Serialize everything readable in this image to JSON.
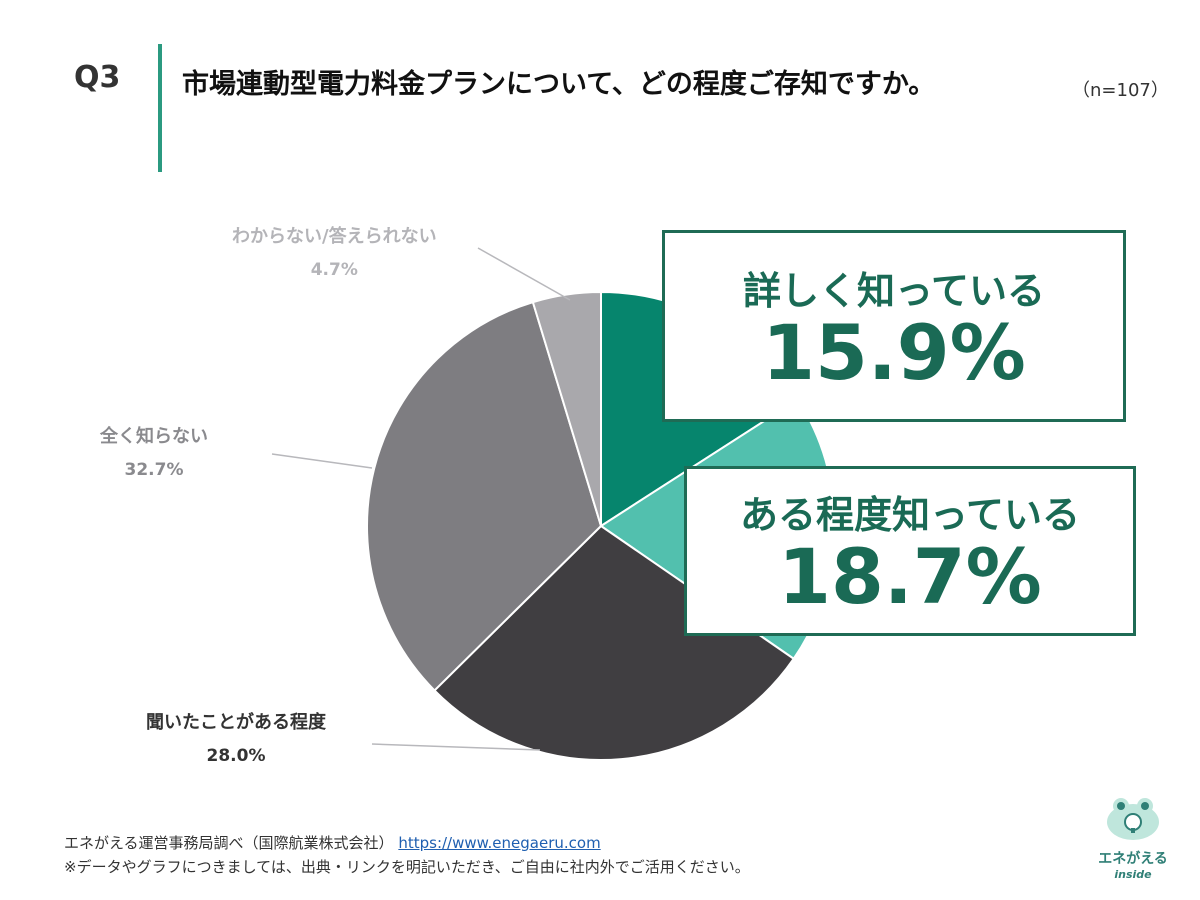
{
  "header": {
    "qnum": "Q3",
    "title": "市場連動型電力料金プランについて、どの程度ご存知ですか。",
    "n": "（n=107）"
  },
  "chart_data": {
    "type": "pie",
    "title": "市場連動型電力料金プランについて、どの程度ご存知ですか。",
    "start": "12 o'clock",
    "direction": "clockwise",
    "slices": [
      {
        "label": "詳しく知っている",
        "value": 15.9,
        "display": "15.9%",
        "color": "#06856d"
      },
      {
        "label": "ある程度知っている",
        "value": 18.7,
        "display": "18.7%",
        "color": "#52c0ae"
      },
      {
        "label": "聞いたことがある程度",
        "value": 28.0,
        "display": "28.0%",
        "color": "#403e41"
      },
      {
        "label": "全く知らない",
        "value": 32.7,
        "display": "32.7%",
        "color": "#7e7d81"
      },
      {
        "label": "わからない/答えられない",
        "value": 4.7,
        "display": "4.7%",
        "color": "#a9a8ac"
      }
    ]
  },
  "footer": {
    "source": "エネがえる運営事務局調べ（国際航業株式会社）",
    "link": "https://www.enegaeru.com",
    "note": "※データやグラフにつきましては、出典・リンクを明記いただき、ご自由に社内外でご活用ください。"
  },
  "logo": {
    "name": "エネがえる",
    "sub": "inside"
  }
}
